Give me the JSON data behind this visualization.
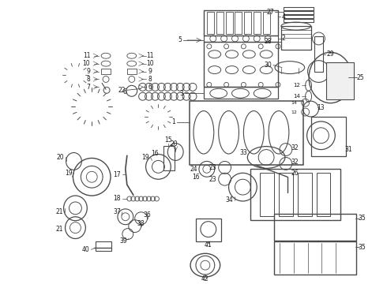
{
  "bg_color": "#ffffff",
  "line_color": "#4a4a4a",
  "text_color": "#1a1a1a",
  "fig_width": 4.9,
  "fig_height": 3.6,
  "dpi": 100
}
